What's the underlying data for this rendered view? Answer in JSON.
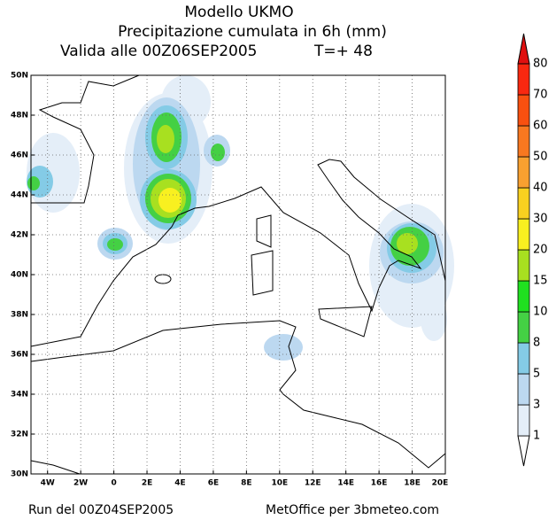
{
  "title": "Modello UKMO",
  "subtitle": "Precipitazione cumulata in 6h (mm)",
  "valid": "Valida alle 00Z06SEP2005",
  "lead": "T=+ 48",
  "lat_ticks": [
    "50N",
    "48N",
    "46N",
    "44N",
    "42N",
    "40N",
    "38N",
    "36N",
    "34N",
    "32N",
    "30N"
  ],
  "lon_ticks": [
    "4W",
    "2W",
    "0",
    "2E",
    "4E",
    "6E",
    "8E",
    "10E",
    "12E",
    "14E",
    "16E",
    "18E",
    "20E"
  ],
  "legend": {
    "levels": [
      1,
      3,
      5,
      8,
      10,
      15,
      20,
      30,
      40,
      50,
      60,
      70,
      80
    ],
    "colors": [
      "#e4eef8",
      "#bcd8f0",
      "#84cbe6",
      "#44d044",
      "#20e020",
      "#a8e020",
      "#f8f020",
      "#f8d020",
      "#f8a030",
      "#f87820",
      "#f85010",
      "#f82810",
      "#e01010"
    ]
  },
  "footer_left": "Run del 00Z04SEP2005",
  "footer_right": "MetOffice per 3bmeteo.com"
}
